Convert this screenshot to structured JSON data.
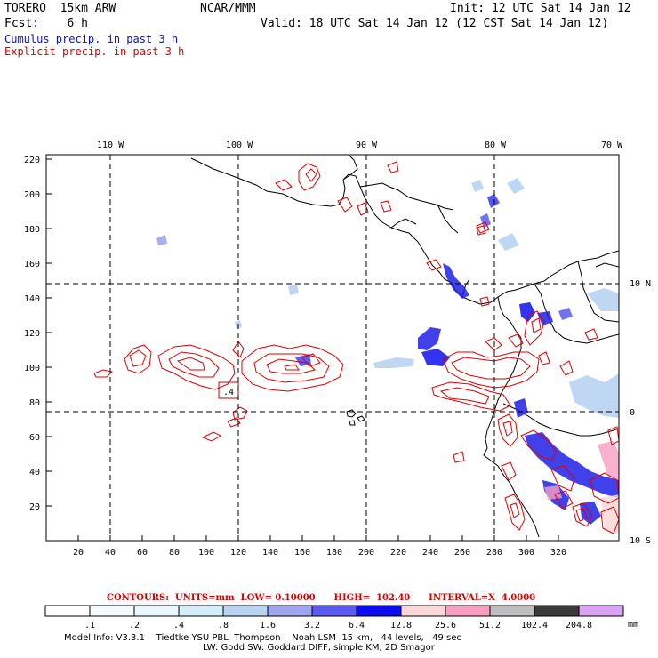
{
  "header": {
    "model_title": "TORERO  15km ARW",
    "org": "NCAR/MMM",
    "init": "Init: 12 UTC Sat 14 Jan 12",
    "fcst": "Fcst:    6 h",
    "valid": "Valid: 18 UTC Sat 14 Jan 12 (12 CST Sat 14 Jan 12)",
    "line_cumulus": "Cumulus precip. in past 3 h",
    "line_explicit": "Explicit precip. in past 3 h"
  },
  "colors": {
    "cumulus_label": "#1010c8",
    "explicit_label": "#e00000",
    "contour_red": "#e00000",
    "grid_dash": "#000000"
  },
  "map": {
    "lon_labels": [
      "110 W",
      "100 W",
      "90 W",
      "80 W",
      "70 W"
    ],
    "lat_labels": [
      "10 N",
      "0",
      "10 S"
    ],
    "x_ticks": [
      "20",
      "40",
      "60",
      "80",
      "100",
      "120",
      "140",
      "160",
      "180",
      "200",
      "220",
      "240",
      "260",
      "280",
      "300",
      "320"
    ],
    "y_ticks": [
      "20",
      "40",
      "60",
      "80",
      "100",
      "120",
      "140",
      "160",
      "180",
      "200",
      "220"
    ],
    "box_label": ".4"
  },
  "contour_info": {
    "text": "CONTOURS:  UNITS=mm  LOW= 0.10000      HIGH=  102.40      INTERVAL=X  4.0000"
  },
  "colorbar": {
    "labels": [
      ".1",
      ".2",
      ".4",
      ".8",
      "1.6",
      "3.2",
      "6.4",
      "12.8",
      "25.6",
      "51.2",
      "102.4",
      "204.8"
    ],
    "unit": "mm",
    "colors": [
      "#ffffff",
      "#ffffff",
      "#f3fbfd",
      "#e8f7fb",
      "#d4ecf8",
      "#b9d3f3",
      "#9da6ee",
      "#5a5af0",
      "#0c0cf0",
      "#fcd7d7",
      "#f89ec2",
      "#bebebe",
      "#3a3a3a",
      "#d9a2f3"
    ]
  },
  "footer": {
    "line1": "Model Info: V3.3.1    Tiedtke YSU PBL  Thompson    Noah LSM  15 km,   44 levels,   49 sec",
    "line2": "LW: Godd SW: Goddard DIFF, simple KM, 2D Smagor"
  }
}
